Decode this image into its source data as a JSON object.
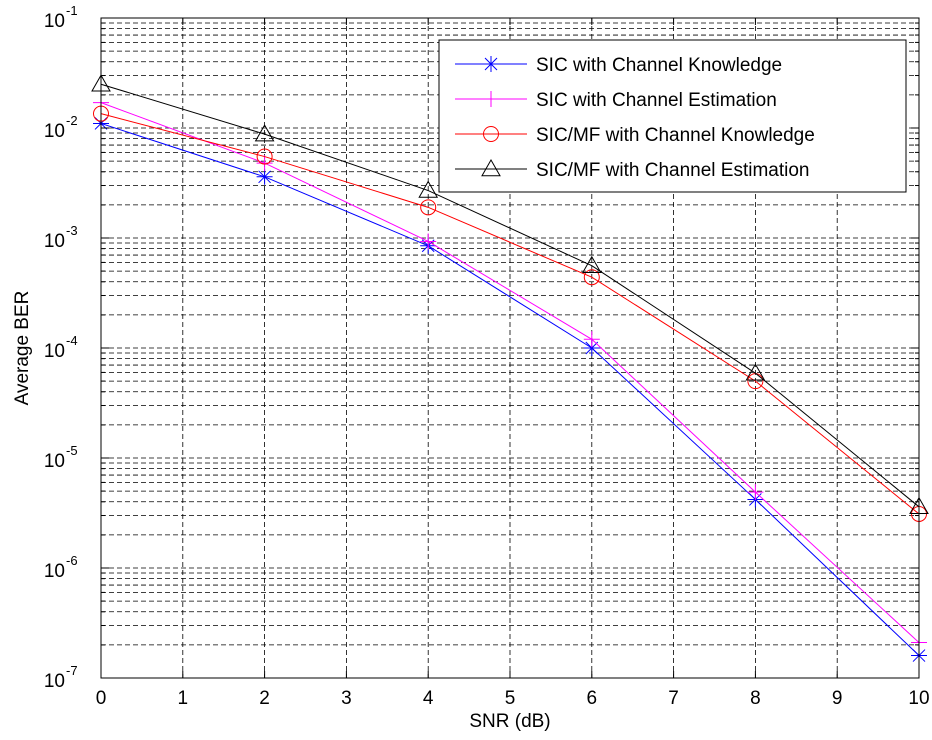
{
  "chart_data": {
    "type": "line",
    "xlabel": "SNR (dB)",
    "ylabel": "Average BER",
    "xlim": [
      0,
      10
    ],
    "ylim": [
      1e-07,
      0.1
    ],
    "yscale": "log",
    "grid": true,
    "legend_position": "top-right",
    "x_ticks": [
      "0",
      "1",
      "2",
      "3",
      "4",
      "5",
      "6",
      "7",
      "8",
      "9",
      "10"
    ],
    "y_ticks": [
      {
        "base": "10",
        "exp": "-7",
        "value": 1e-07
      },
      {
        "base": "10",
        "exp": "-6",
        "value": 1e-06
      },
      {
        "base": "10",
        "exp": "-5",
        "value": 1e-05
      },
      {
        "base": "10",
        "exp": "-4",
        "value": 0.0001
      },
      {
        "base": "10",
        "exp": "-3",
        "value": 0.001
      },
      {
        "base": "10",
        "exp": "-2",
        "value": 0.01
      },
      {
        "base": "10",
        "exp": "-1",
        "value": 0.1
      }
    ],
    "x": [
      0,
      2,
      4,
      6,
      8,
      10
    ],
    "series": [
      {
        "name": "SIC with Channel Knowledge",
        "color": "#0000ff",
        "marker": "asterisk",
        "values": [
          0.011,
          0.0036,
          0.00085,
          0.0001,
          4.2e-06,
          1.6e-07
        ]
      },
      {
        "name": "SIC with Channel Estimation",
        "color": "#ff00ff",
        "marker": "plus",
        "values": [
          0.017,
          0.0048,
          0.00093,
          0.00012,
          4.9e-06,
          2.1e-07
        ]
      },
      {
        "name": "SIC/MF with Channel Knowledge",
        "color": "#ff0000",
        "marker": "circle",
        "values": [
          0.0135,
          0.0055,
          0.0019,
          0.00044,
          5e-05,
          3.1e-06
        ]
      },
      {
        "name": "SIC/MF with Channel Estimation",
        "color": "#000000",
        "marker": "triangle",
        "values": [
          0.025,
          0.0088,
          0.0027,
          0.00056,
          5.9e-05,
          3.6e-06
        ]
      }
    ]
  }
}
